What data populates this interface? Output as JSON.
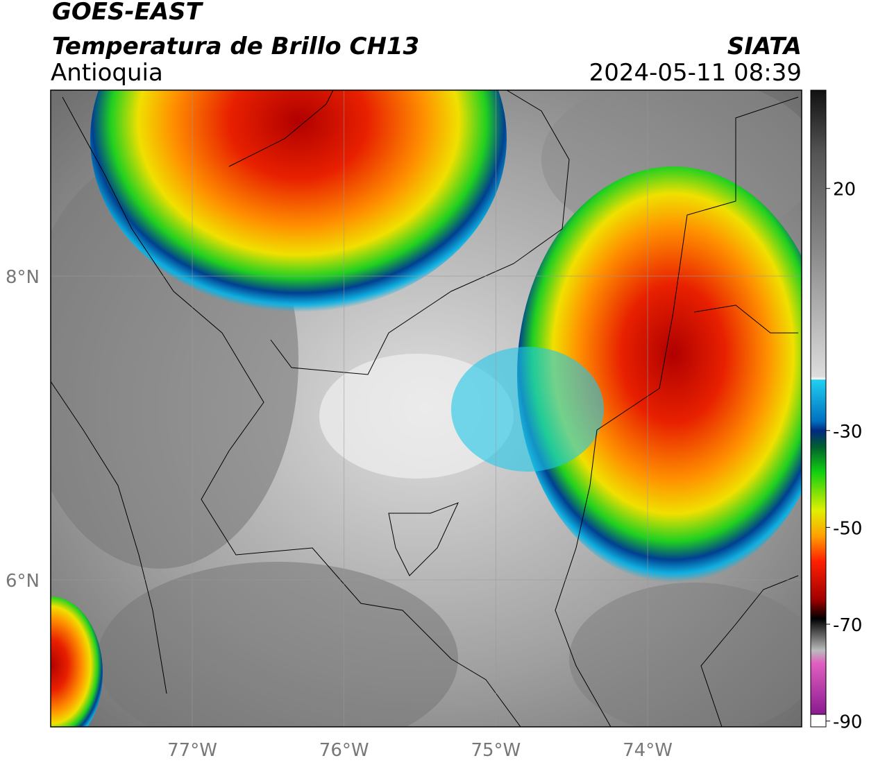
{
  "header": {
    "title": "GOES-EAST",
    "subtitle": "Temperatura de Brillo CH13",
    "region": "Antioquia",
    "source": "SIATA",
    "datetime": "2024-05-11 08:39"
  },
  "map": {
    "xlim": [
      -77.933,
      -72.985
    ],
    "ylim": [
      5.032,
      9.224
    ],
    "yticks": [
      {
        "value": 8,
        "label": "8°N"
      },
      {
        "value": 6,
        "label": "6°N"
      }
    ],
    "xticks": [
      {
        "value": -77,
        "label": "77°W"
      },
      {
        "value": -76,
        "label": "76°W"
      },
      {
        "value": -75,
        "label": "75°W"
      },
      {
        "value": -74,
        "label": "74°W"
      }
    ]
  },
  "colorbar": {
    "lim": [
      -91.2,
      40.3
    ],
    "ticks": [
      20,
      -30,
      -50,
      -70,
      -90
    ]
  }
}
